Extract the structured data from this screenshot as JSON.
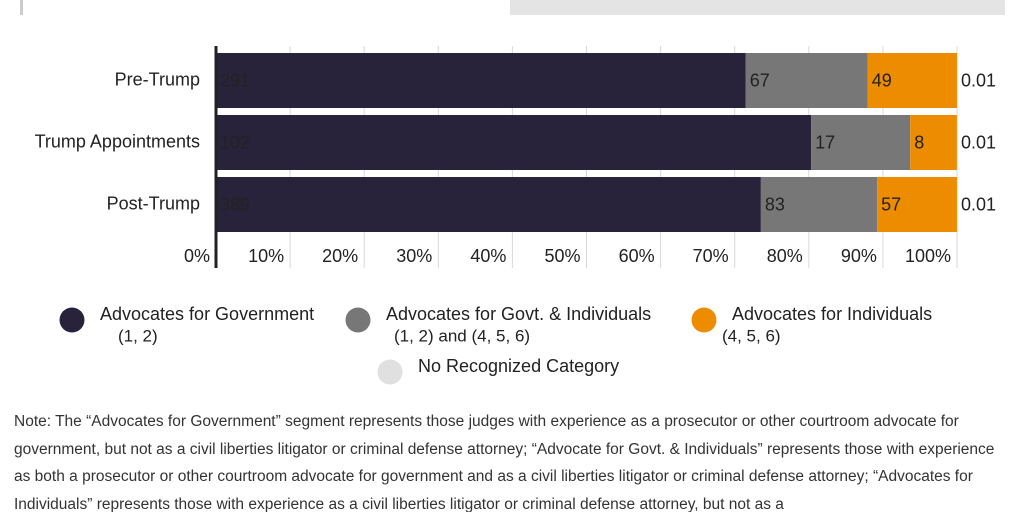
{
  "chart_data": {
    "type": "stacked-bar-percent",
    "categories": [
      "Pre-Trump",
      "Trump Appointments",
      "Post-Trump"
    ],
    "series": [
      {
        "name": "Advocates for Government",
        "codes": "(1, 2)",
        "color": "#28233b",
        "values": [
          291,
          102,
          389
        ]
      },
      {
        "name": "Advocates for Govt. & Individuals",
        "codes": "(1, 2) and (4, 5, 6)",
        "color": "#777777",
        "values": [
          67,
          17,
          83
        ]
      },
      {
        "name": "Advocates for Individuals",
        "codes": "(4, 5, 6)",
        "color": "#ee8c00",
        "values": [
          49,
          8,
          57
        ]
      },
      {
        "name": "No Recognized Category",
        "color": "#e0e0e0",
        "values": [
          0.01,
          0.01,
          0.01
        ]
      }
    ],
    "xlim": [
      0,
      100
    ],
    "xticks": [
      {
        "value": 0,
        "label": "0%"
      },
      {
        "value": 10,
        "label": "10%"
      },
      {
        "value": 20,
        "label": "20%"
      },
      {
        "value": 30,
        "label": "30%"
      },
      {
        "value": 40,
        "label": "40%"
      },
      {
        "value": 50,
        "label": "50%"
      },
      {
        "value": 60,
        "label": "60%"
      },
      {
        "value": 70,
        "label": "70%"
      },
      {
        "value": 80,
        "label": "80%"
      },
      {
        "value": 90,
        "label": "90%"
      },
      {
        "value": 100,
        "label": "100%"
      }
    ],
    "grid": true,
    "note": "Note: The “Advocates for Government” segment represents those judges with experience as a prosecutor or other courtroom advocate for government, but not as a civil liberties litigator or criminal defense attorney; “Advocate for Govt. & Individuals” represents those with experience as both a prosecutor or other courtroom advocate for government and as a civil liberties litigator or criminal defense attorney; “Advocates for Individuals” represents those with experience as a civil liberties litigator or criminal defense attorney, but not as a"
  }
}
